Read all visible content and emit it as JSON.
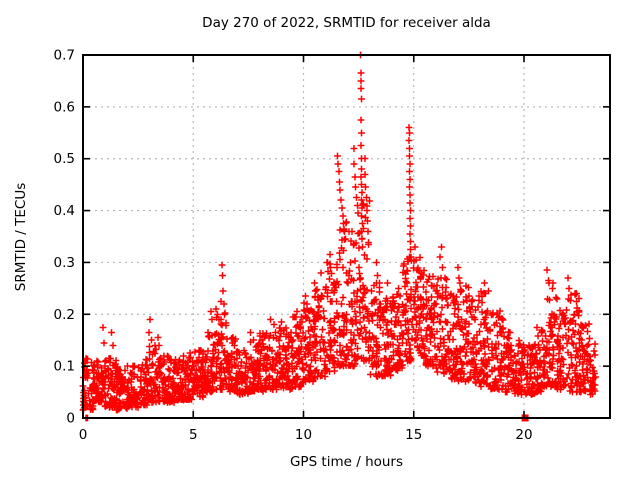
{
  "chart_data": {
    "type": "scatter",
    "title": "Day 270 of 2022, SRMTID for receiver alda",
    "xlabel": "GPS time / hours",
    "ylabel": "SRMTID / TECUs",
    "xlim": [
      0,
      23.9
    ],
    "ylim": [
      0,
      0.7
    ],
    "grid": true,
    "grid_color": "#b8b8b8",
    "border_color": "#000000",
    "background_color": "#ffffff",
    "x_ticks": [
      [
        0,
        "0"
      ],
      [
        5,
        "5"
      ],
      [
        10,
        "10"
      ],
      [
        15,
        "15"
      ],
      [
        20,
        "20"
      ]
    ],
    "y_ticks": [
      [
        0,
        "0"
      ],
      [
        0.1,
        "0.1"
      ],
      [
        0.2,
        "0.2"
      ],
      [
        0.3,
        "0.3"
      ],
      [
        0.4,
        "0.4"
      ],
      [
        0.5,
        "0.5"
      ],
      [
        0.6,
        "0.6"
      ],
      [
        0.7,
        "0.7"
      ]
    ],
    "series": [
      {
        "name": "SRMTID",
        "marker": "plus",
        "color": "#ff0000",
        "cadence_note": "dense ~30s samples summarized as half-hour envelope bins [x_start, y_min, y_max, n_points, optional_x_end]",
        "envelope_bins": [
          [
            0.0,
            0.015,
            0.115,
            58
          ],
          [
            0.5,
            0.03,
            0.11,
            56
          ],
          [
            1.0,
            0.02,
            0.115,
            57
          ],
          [
            1.5,
            0.015,
            0.1,
            56
          ],
          [
            2.0,
            0.02,
            0.1,
            57
          ],
          [
            2.5,
            0.025,
            0.115,
            56
          ],
          [
            3.0,
            0.03,
            0.14,
            58
          ],
          [
            3.5,
            0.03,
            0.12,
            56
          ],
          [
            4.0,
            0.03,
            0.115,
            57
          ],
          [
            4.5,
            0.035,
            0.12,
            56
          ],
          [
            5.0,
            0.04,
            0.13,
            57
          ],
          [
            5.5,
            0.05,
            0.165,
            56
          ],
          [
            6.0,
            0.055,
            0.21,
            58
          ],
          [
            6.5,
            0.05,
            0.155,
            56
          ],
          [
            7.0,
            0.045,
            0.13,
            57
          ],
          [
            7.5,
            0.05,
            0.15,
            56
          ],
          [
            8.0,
            0.05,
            0.165,
            57
          ],
          [
            8.5,
            0.055,
            0.18,
            56
          ],
          [
            9.0,
            0.055,
            0.175,
            57
          ],
          [
            9.5,
            0.06,
            0.195,
            56
          ],
          [
            10.0,
            0.07,
            0.225,
            58
          ],
          [
            10.5,
            0.08,
            0.25,
            57
          ],
          [
            11.0,
            0.09,
            0.3,
            58
          ],
          [
            11.5,
            0.1,
            0.38,
            57
          ],
          [
            12.0,
            0.1,
            0.36,
            58
          ],
          [
            12.5,
            0.11,
            0.42,
            58
          ],
          [
            13.0,
            0.08,
            0.26,
            57
          ],
          [
            13.5,
            0.08,
            0.23,
            56
          ],
          [
            14.0,
            0.09,
            0.24,
            57
          ],
          [
            14.5,
            0.11,
            0.31,
            58
          ],
          [
            15.0,
            0.12,
            0.31,
            58
          ],
          [
            15.5,
            0.1,
            0.28,
            57
          ],
          [
            16.0,
            0.085,
            0.27,
            57
          ],
          [
            16.5,
            0.075,
            0.25,
            56
          ],
          [
            17.0,
            0.07,
            0.26,
            57
          ],
          [
            17.5,
            0.065,
            0.235,
            56
          ],
          [
            18.0,
            0.06,
            0.245,
            57
          ],
          [
            18.5,
            0.055,
            0.21,
            56
          ],
          [
            19.0,
            0.05,
            0.195,
            56
          ],
          [
            19.5,
            0.045,
            0.15,
            56
          ],
          [
            20.0,
            0.045,
            0.14,
            56
          ],
          [
            20.5,
            0.05,
            0.175,
            56
          ],
          [
            21.0,
            0.06,
            0.26,
            57
          ],
          [
            21.5,
            0.055,
            0.21,
            56
          ],
          [
            22.0,
            0.05,
            0.24,
            56
          ],
          [
            22.5,
            0.05,
            0.19,
            56
          ],
          [
            23.0,
            0.045,
            0.145,
            28,
            23.25
          ]
        ],
        "outliers": [
          [
            0.9,
            0.175
          ],
          [
            0.95,
            0.145
          ],
          [
            1.3,
            0.165
          ],
          [
            1.35,
            0.14
          ],
          [
            3.03,
            0.19
          ],
          [
            3.0,
            0.165
          ],
          [
            3.1,
            0.15
          ],
          [
            3.4,
            0.155
          ],
          [
            3.45,
            0.14
          ],
          [
            4.85,
            0.125
          ],
          [
            5.8,
            0.205
          ],
          [
            5.85,
            0.19
          ],
          [
            6.3,
            0.295
          ],
          [
            6.32,
            0.275
          ],
          [
            6.35,
            0.245
          ],
          [
            6.25,
            0.225
          ],
          [
            6.4,
            0.22
          ],
          [
            7.6,
            0.165
          ],
          [
            8.5,
            0.19
          ],
          [
            9.0,
            0.185
          ],
          [
            9.7,
            0.205
          ],
          [
            10.1,
            0.235
          ],
          [
            10.15,
            0.22
          ],
          [
            10.5,
            0.26
          ],
          [
            10.55,
            0.245
          ],
          [
            10.8,
            0.28
          ],
          [
            11.2,
            0.315
          ],
          [
            11.55,
            0.505
          ],
          [
            11.57,
            0.49
          ],
          [
            11.6,
            0.475
          ],
          [
            11.63,
            0.455
          ],
          [
            11.66,
            0.44
          ],
          [
            11.7,
            0.42
          ],
          [
            11.74,
            0.405
          ],
          [
            11.78,
            0.39
          ],
          [
            11.82,
            0.375
          ],
          [
            11.86,
            0.36
          ],
          [
            11.9,
            0.345
          ],
          [
            12.28,
            0.52
          ],
          [
            12.3,
            0.49
          ],
          [
            12.33,
            0.465
          ],
          [
            12.36,
            0.445
          ],
          [
            12.4,
            0.425
          ],
          [
            12.44,
            0.41
          ],
          [
            12.48,
            0.395
          ],
          [
            12.58,
            0.7
          ],
          [
            12.6,
            0.665
          ],
          [
            12.6,
            0.65
          ],
          [
            12.61,
            0.635
          ],
          [
            12.62,
            0.615
          ],
          [
            12.6,
            0.575
          ],
          [
            12.63,
            0.55
          ],
          [
            12.6,
            0.525
          ],
          [
            12.62,
            0.5
          ],
          [
            12.64,
            0.48
          ],
          [
            12.6,
            0.465
          ],
          [
            12.63,
            0.45
          ],
          [
            12.65,
            0.435
          ],
          [
            12.62,
            0.42
          ],
          [
            12.66,
            0.405
          ],
          [
            12.63,
            0.39
          ],
          [
            12.67,
            0.375
          ],
          [
            12.64,
            0.36
          ],
          [
            12.66,
            0.345
          ],
          [
            12.68,
            0.33
          ],
          [
            12.78,
            0.5
          ],
          [
            12.8,
            0.47
          ],
          [
            12.82,
            0.445
          ],
          [
            12.85,
            0.425
          ],
          [
            12.88,
            0.4
          ],
          [
            12.9,
            0.38
          ],
          [
            12.92,
            0.36
          ],
          [
            12.95,
            0.335
          ],
          [
            13.3,
            0.3
          ],
          [
            13.35,
            0.275
          ],
          [
            13.8,
            0.26
          ],
          [
            14.3,
            0.25
          ],
          [
            14.78,
            0.56
          ],
          [
            14.8,
            0.55
          ],
          [
            14.79,
            0.535
          ],
          [
            14.81,
            0.52
          ],
          [
            14.8,
            0.505
          ],
          [
            14.82,
            0.49
          ],
          [
            14.8,
            0.475
          ],
          [
            14.83,
            0.46
          ],
          [
            14.81,
            0.445
          ],
          [
            14.84,
            0.43
          ],
          [
            14.82,
            0.415
          ],
          [
            14.85,
            0.4
          ],
          [
            14.83,
            0.385
          ],
          [
            14.86,
            0.37
          ],
          [
            14.84,
            0.355
          ],
          [
            14.86,
            0.34
          ],
          [
            14.85,
            0.325
          ],
          [
            14.87,
            0.31
          ],
          [
            15.05,
            0.33
          ],
          [
            15.1,
            0.305
          ],
          [
            15.15,
            0.285
          ],
          [
            15.3,
            0.27
          ],
          [
            16.2,
            0.31
          ],
          [
            16.25,
            0.33
          ],
          [
            16.3,
            0.29
          ],
          [
            17.0,
            0.29
          ],
          [
            17.05,
            0.27
          ],
          [
            18.2,
            0.26
          ],
          [
            18.25,
            0.24
          ],
          [
            21.05,
            0.285
          ],
          [
            21.1,
            0.265
          ],
          [
            21.3,
            0.25
          ],
          [
            22.0,
            0.27
          ],
          [
            22.05,
            0.25
          ],
          [
            22.5,
            0.23
          ]
        ],
        "zero_points": [
          [
            0.13,
            0
          ],
          [
            0.2,
            0
          ]
        ]
      }
    ],
    "special_points": [
      {
        "x": 20.05,
        "y": 0,
        "marker": "filled-square",
        "color": "#ff0000"
      }
    ]
  }
}
